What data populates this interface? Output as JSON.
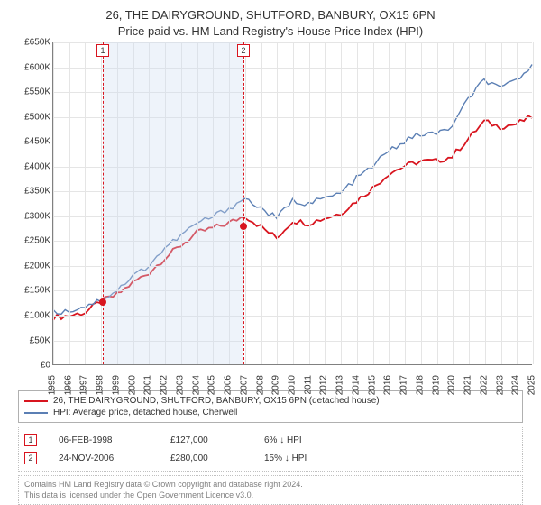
{
  "title_line1": "26, THE DAIRYGROUND, SHUTFORD, BANBURY, OX15 6PN",
  "title_line2": "Price paid vs. HM Land Registry's House Price Index (HPI)",
  "chart": {
    "type": "line",
    "x_start_year": 1995,
    "x_end_year": 2025,
    "ylim": [
      0,
      650000
    ],
    "ytick_step": 50000,
    "ytick_prefix": "£",
    "ytick_suffix": "K",
    "background_color": "#ffffff",
    "grid_color": "#e5e5e5",
    "axis_color": "#808080",
    "tick_fontsize": 10,
    "shade_band": {
      "from_year": 1998.1,
      "to_year": 2006.9,
      "fill": "#cddcf0",
      "opacity": 0.35
    },
    "markers": [
      {
        "n": "1",
        "year": 1998.1,
        "price": 127000,
        "color": "#d8151f"
      },
      {
        "n": "2",
        "year": 2006.9,
        "price": 280000,
        "color": "#d8151f"
      }
    ],
    "series": [
      {
        "id": "property",
        "label": "26, THE DAIRYGROUND, SHUTFORD, BANBURY, OX15 6PN (detached house)",
        "color": "#d8151f",
        "line_width": 1.8,
        "values_by_year": {
          "1995": 95000,
          "1996": 98000,
          "1997": 105000,
          "1998": 127000,
          "1999": 140000,
          "2000": 165000,
          "2001": 185000,
          "2002": 215000,
          "2003": 240000,
          "2004": 265000,
          "2005": 275000,
          "2006": 285000,
          "2007": 300000,
          "2008": 278000,
          "2009": 255000,
          "2010": 290000,
          "2011": 285000,
          "2012": 295000,
          "2013": 305000,
          "2014": 330000,
          "2015": 355000,
          "2016": 385000,
          "2017": 400000,
          "2018": 410000,
          "2019": 410000,
          "2020": 420000,
          "2021": 455000,
          "2022": 490000,
          "2023": 480000,
          "2024": 485000,
          "2025": 500000
        }
      },
      {
        "id": "hpi",
        "label": "HPI: Average price, detached house, Cherwell",
        "color": "#5b7fb4",
        "line_width": 1.4,
        "values_by_year": {
          "1995": 105000,
          "1996": 108000,
          "1997": 118000,
          "1998": 130000,
          "1999": 150000,
          "2000": 178000,
          "2001": 200000,
          "2002": 235000,
          "2003": 260000,
          "2004": 285000,
          "2005": 298000,
          "2006": 315000,
          "2007": 335000,
          "2008": 315000,
          "2009": 295000,
          "2010": 330000,
          "2011": 325000,
          "2012": 335000,
          "2013": 345000,
          "2014": 375000,
          "2015": 400000,
          "2016": 430000,
          "2017": 450000,
          "2018": 465000,
          "2019": 465000,
          "2020": 480000,
          "2021": 535000,
          "2022": 575000,
          "2023": 555000,
          "2024": 575000,
          "2025": 600000
        }
      }
    ]
  },
  "legend": {
    "border_color": "#b0b0b0",
    "fontsize": 10
  },
  "sales": [
    {
      "n": "1",
      "date": "06-FEB-1998",
      "price": "£127,000",
      "diff": "6%  ↓  HPI",
      "color": "#d8151f"
    },
    {
      "n": "2",
      "date": "24-NOV-2006",
      "price": "£280,000",
      "diff": "15%  ↓  HPI",
      "color": "#d8151f"
    }
  ],
  "footnote": {
    "line1": "Contains HM Land Registry data © Crown copyright and database right 2024.",
    "line2": "This data is licensed under the Open Government Licence v3.0.",
    "color": "#808080"
  }
}
